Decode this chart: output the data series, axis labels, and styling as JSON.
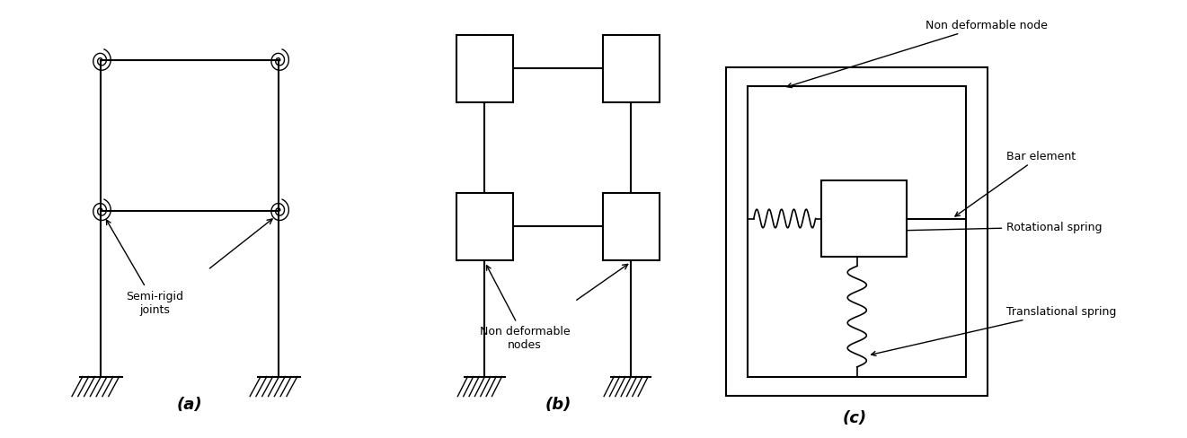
{
  "fig_width": 13.21,
  "fig_height": 4.89,
  "dpi": 100,
  "bg_color": "#ffffff",
  "line_color": "#000000",
  "label_a": "(a)",
  "label_b": "(b)",
  "label_c": "(c)",
  "text_semi_rigid": "Semi-rigid\njoints",
  "text_non_def_nodes": "Non deformable\nnodes",
  "text_non_def_node": "Non deformable node",
  "text_bar_element": "Bar element",
  "text_rot_spring": "Rotational spring",
  "text_trans_spring": "Translational spring"
}
